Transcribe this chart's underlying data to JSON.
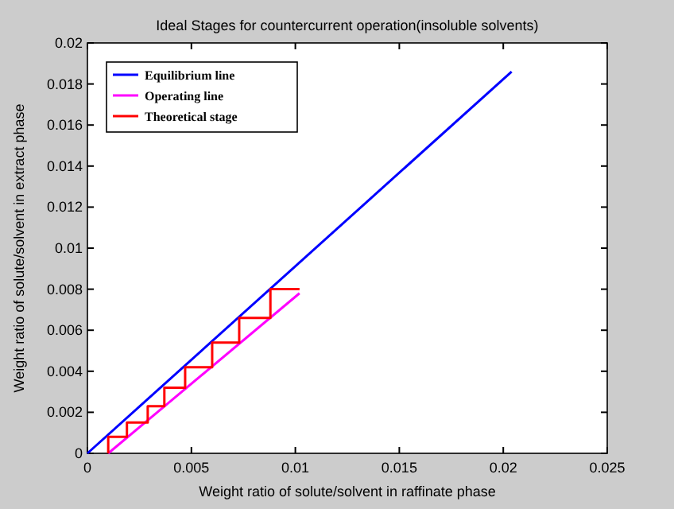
{
  "chart_data": {
    "type": "line",
    "title": "Ideal Stages for countercurrent operation(insoluble solvents)",
    "xlabel": "Weight ratio of solute/solvent in raffinate phase",
    "ylabel": "Weight ratio of solute/solvent in extract phase",
    "xlim": [
      0,
      0.025
    ],
    "ylim": [
      0,
      0.02
    ],
    "xticks": [
      0,
      0.005,
      0.01,
      0.015,
      0.02,
      0.025
    ],
    "yticks": [
      0,
      0.002,
      0.004,
      0.006,
      0.008,
      0.01,
      0.012,
      0.014,
      0.016,
      0.018,
      0.02
    ],
    "legend": "top left",
    "grid": false,
    "marker": "none",
    "line_style": "solid",
    "series": [
      {
        "name": "Equilibrium line",
        "color": "#0000ff",
        "x": [
          0,
          0.0204
        ],
        "values": [
          0,
          0.0186
        ]
      },
      {
        "name": "Operating line",
        "color": "#ff00ff",
        "x": [
          0.001,
          0.0102
        ],
        "values": [
          0,
          0.0078
        ]
      },
      {
        "name": "Theoretical stage",
        "color": "#ff0000",
        "x": [
          0.0102,
          0.0088,
          0.0088,
          0.0073,
          0.0073,
          0.006,
          0.006,
          0.0047,
          0.0047,
          0.0037,
          0.0037,
          0.0029,
          0.0029,
          0.0019,
          0.0019,
          0.001,
          0.001
        ],
        "values": [
          0.008,
          0.008,
          0.0066,
          0.0066,
          0.0054,
          0.0054,
          0.0042,
          0.0042,
          0.0032,
          0.0032,
          0.0023,
          0.0023,
          0.0015,
          0.0015,
          0.0008,
          0.0008,
          0
        ]
      }
    ]
  }
}
